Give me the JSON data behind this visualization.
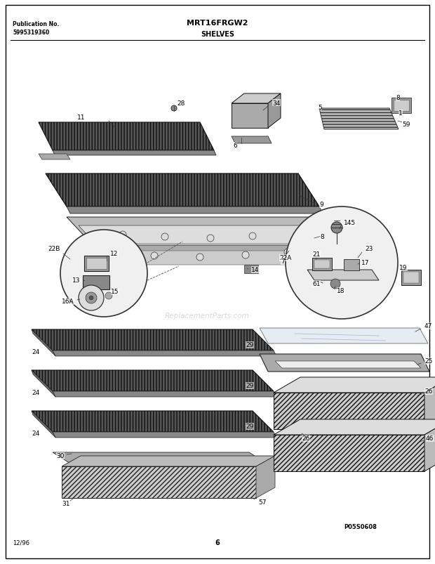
{
  "title_model": "MRT16FRGW2",
  "title_section": "SHELVES",
  "pub_no_label": "Publication No.",
  "pub_no_value": "5995319360",
  "page_num": "6",
  "date": "12/96",
  "part_code": "P05S0608",
  "border_color": "#000000",
  "bg_color": "#ffffff",
  "watermark": "ReplacementParts.com",
  "fig_w": 6.2,
  "fig_h": 8.04,
  "dpi": 100
}
